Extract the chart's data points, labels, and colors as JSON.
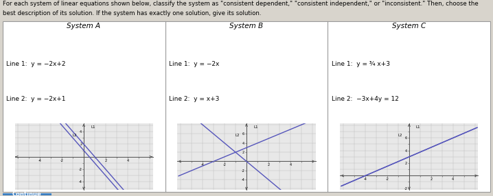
{
  "title_line1": "For each system of linear equations shown below, classify the system as \"consistent dependent,\" \"consistent independent,\" or \"inconsistent.\" Then, choose the",
  "title_line2": "best description of its solution. If the system has exactly one solution, give its solution.",
  "systems": [
    {
      "name": "System A",
      "line1_label": "Line 1:  y = −2x+2",
      "line2_label": "Line 2:  y = −2x+1",
      "line1_slope": -2,
      "line1_intercept": 2,
      "line2_slope": -2,
      "line2_intercept": 1,
      "xlim": [
        -6,
        6
      ],
      "ylim": [
        -5,
        5
      ],
      "xticks": [
        -6,
        -5,
        -4,
        -3,
        -2,
        -1,
        0,
        1,
        2,
        3,
        4,
        5,
        6
      ],
      "yticks": [
        -5,
        -4,
        -3,
        -2,
        -1,
        0,
        1,
        2,
        3,
        4,
        5
      ],
      "xlabel_ticks": [
        -4,
        -2,
        2,
        4
      ],
      "ylabel_ticks": [
        -4,
        -2,
        2,
        4
      ],
      "line_color": "#5555bb"
    },
    {
      "name": "System B",
      "line1_label": "Line 1:  y = −2x",
      "line2_label": "Line 2:  y = x+3",
      "line1_slope": -2,
      "line1_intercept": 0,
      "line2_slope": 1,
      "line2_intercept": 3,
      "xlim": [
        -6,
        6
      ],
      "ylim": [
        -6,
        8
      ],
      "xticks": [
        -6,
        -5,
        -4,
        -3,
        -2,
        -1,
        0,
        1,
        2,
        3,
        4,
        5,
        6
      ],
      "yticks": [
        -6,
        -4,
        -2,
        0,
        2,
        4,
        6,
        8
      ],
      "xlabel_ticks": [
        -4,
        -2,
        2,
        4
      ],
      "ylabel_ticks": [
        -4,
        -2,
        2,
        4,
        6
      ],
      "line_color": "#5555bb"
    },
    {
      "name": "System C",
      "line1_label": "Line 1:  y = ¾ x+3",
      "line2_label": "Line 2:  −3x+4y = 12",
      "line1_slope": 0.75,
      "line1_intercept": 3,
      "line2_slope": 0.75,
      "line2_intercept": 3,
      "xlim": [
        -6,
        6
      ],
      "ylim": [
        -2,
        8
      ],
      "xticks": [
        -6,
        -5,
        -4,
        -3,
        -2,
        -1,
        0,
        1,
        2,
        3,
        4,
        5,
        6
      ],
      "yticks": [
        -2,
        -1,
        0,
        1,
        2,
        3,
        4,
        5,
        6,
        7,
        8
      ],
      "xlabel_ticks": [
        -4,
        -2,
        2,
        4
      ],
      "ylabel_ticks": [
        -2,
        2,
        4,
        6
      ],
      "line_color": "#5555bb"
    }
  ],
  "bg_color": "#d8d4cc",
  "table_bg": "#ffffff",
  "graph_bg": "#e8e8e8",
  "border_color": "#999999",
  "grid_color": "#bbbbbb",
  "axis_color": "#555555",
  "btn_color": "#4488cc",
  "btn_text": "Continue"
}
